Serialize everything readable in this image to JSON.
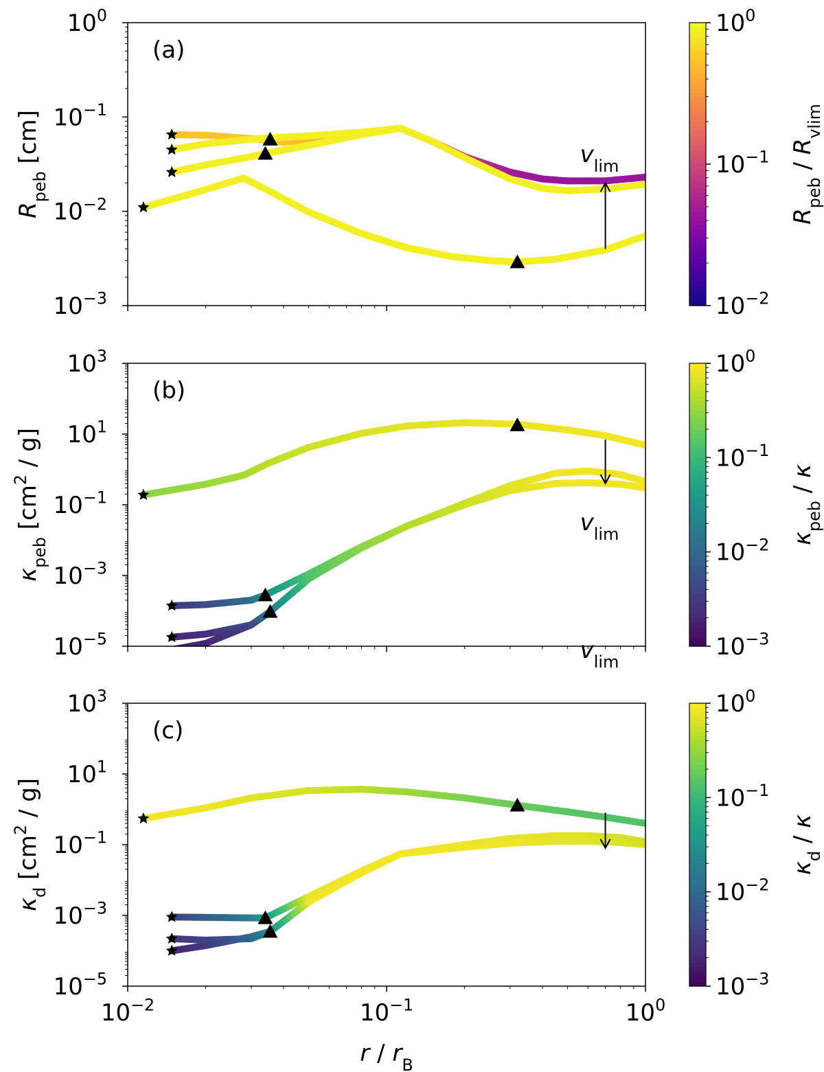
{
  "chart_data": [
    {
      "type": "line",
      "panel_label": "(a)",
      "ylabel": "R_peb [cm]",
      "xscale": "log",
      "yscale": "log",
      "xlim": [
        0.01,
        1.0
      ],
      "ylim": [
        0.001,
        1.0
      ],
      "yticks": [
        0.001,
        0.01,
        0.1,
        1.0
      ],
      "ytick_labels": [
        {
          "base": "10",
          "exp": "−3"
        },
        {
          "base": "10",
          "exp": "−2"
        },
        {
          "base": "10",
          "exp": "−1"
        },
        {
          "base": "10",
          "exp": "0"
        }
      ],
      "colorbar": {
        "label": "R_peb / R_vlim",
        "colormap": "plasma",
        "range": [
          0.01,
          1.0
        ],
        "tick_labels": [
          {
            "base": "10",
            "exp": "0"
          },
          {
            "base": "10",
            "exp": "−1"
          },
          {
            "base": "10",
            "exp": "−2"
          }
        ]
      },
      "annotation": {
        "text": "v",
        "sub": "lim",
        "arrow": "up",
        "arrow_x": 0.7,
        "arrow_from": 0.004,
        "arrow_to": 0.02
      },
      "series": [
        {
          "x": [
            0.0148,
            0.02,
            0.03,
            0.035,
            0.04,
            0.06,
            0.113,
            0.15,
            0.2,
            0.3,
            0.4,
            0.5,
            0.7,
            1.0
          ],
          "y": [
            0.065,
            0.064,
            0.059,
            0.056,
            0.054,
            0.06,
            0.076,
            0.055,
            0.038,
            0.026,
            0.022,
            0.021,
            0.021,
            0.023
          ],
          "c": [
            0.55,
            0.56,
            0.58,
            0.6,
            0.55,
            0.45,
            0.32,
            0.16,
            0.08,
            0.05,
            0.046,
            0.045,
            0.045,
            0.046
          ]
        },
        {
          "x": [
            0.0148,
            0.02,
            0.03,
            0.0355,
            0.05,
            0.08,
            0.113,
            0.15,
            0.2,
            0.3,
            0.4,
            0.5,
            0.7,
            1.0
          ],
          "y": [
            0.045,
            0.052,
            0.058,
            0.06,
            0.063,
            0.069,
            0.076,
            0.055,
            0.037,
            0.022,
            0.0175,
            0.0165,
            0.0172,
            0.0193
          ],
          "c": [
            0.9,
            0.9,
            0.9,
            0.9,
            0.9,
            0.9,
            0.9,
            0.88,
            0.9,
            0.9,
            0.9,
            0.9,
            0.9,
            0.9
          ]
        },
        {
          "x": [
            0.0148,
            0.02,
            0.03,
            0.034,
            0.05,
            0.08,
            0.113
          ],
          "y": [
            0.026,
            0.031,
            0.038,
            0.041,
            0.05,
            0.065,
            0.076
          ],
          "c": [
            0.9,
            0.9,
            0.9,
            0.9,
            0.9,
            0.9,
            0.9
          ]
        },
        {
          "x": [
            0.0115,
            0.02,
            0.028,
            0.035,
            0.05,
            0.08,
            0.12,
            0.18,
            0.25,
            0.32,
            0.45,
            0.7,
            1.0
          ],
          "y": [
            0.011,
            0.017,
            0.0225,
            0.0165,
            0.0098,
            0.0058,
            0.0041,
            0.0033,
            0.003,
            0.0029,
            0.0031,
            0.0039,
            0.0055
          ],
          "c": [
            0.9,
            0.9,
            0.9,
            0.9,
            0.9,
            0.9,
            0.9,
            0.9,
            0.9,
            0.9,
            0.9,
            0.9,
            0.9
          ]
        }
      ],
      "stars": [
        {
          "x": 0.0148,
          "y": 0.065
        },
        {
          "x": 0.0148,
          "y": 0.045
        },
        {
          "x": 0.0148,
          "y": 0.026
        },
        {
          "x": 0.0115,
          "y": 0.011
        }
      ],
      "triangles": [
        {
          "x": 0.0355,
          "y": 0.058
        },
        {
          "x": 0.034,
          "y": 0.041
        },
        {
          "x": 0.32,
          "y": 0.0029
        }
      ]
    },
    {
      "type": "line",
      "panel_label": "(b)",
      "ylabel": "κ_peb [cm² / g]",
      "xscale": "log",
      "yscale": "log",
      "xlim": [
        0.01,
        1.0
      ],
      "ylim": [
        1e-05,
        1000
      ],
      "yticks": [
        1e-05,
        0.001,
        0.1,
        10,
        1000
      ],
      "ytick_labels": [
        {
          "base": "10",
          "exp": "−5"
        },
        {
          "base": "10",
          "exp": "−3"
        },
        {
          "base": "10",
          "exp": "−1"
        },
        {
          "base": "10",
          "exp": "1"
        },
        {
          "base": "10",
          "exp": "3"
        }
      ],
      "colorbar": {
        "label": "κ_peb / κ",
        "colormap": "viridis",
        "range": [
          0.001,
          1.0
        ],
        "tick_labels": [
          {
            "base": "10",
            "exp": "0"
          },
          {
            "base": "10",
            "exp": "−1"
          },
          {
            "base": "10",
            "exp": "−2"
          },
          {
            "base": "10",
            "exp": "−3"
          }
        ]
      },
      "annotation": {
        "text": "v",
        "sub": "lim",
        "arrow": "down",
        "arrow_x": 0.7,
        "arrow_from": 7,
        "arrow_to": 0.4
      },
      "series": [
        {
          "x": [
            0.0115,
            0.02,
            0.028,
            0.035,
            0.05,
            0.08,
            0.12,
            0.2,
            0.32,
            0.5,
            0.7,
            1.0
          ],
          "y": [
            0.19,
            0.38,
            0.68,
            1.5,
            4.2,
            10.5,
            17,
            21,
            19,
            13,
            9,
            4.8
          ],
          "c": [
            0.3,
            0.35,
            0.4,
            0.5,
            0.6,
            0.7,
            0.75,
            0.8,
            0.83,
            0.85,
            0.87,
            0.88
          ]
        },
        {
          "x": [
            0.0148,
            0.02,
            0.03,
            0.034,
            0.05,
            0.08,
            0.12,
            0.2,
            0.3,
            0.45,
            0.6,
            0.8,
            1.0
          ],
          "y": [
            0.00014,
            0.00015,
            0.0002,
            0.00028,
            0.0011,
            0.0065,
            0.025,
            0.11,
            0.35,
            0.78,
            0.9,
            0.72,
            0.45
          ],
          "c": [
            0.003,
            0.005,
            0.012,
            0.03,
            0.15,
            0.3,
            0.45,
            0.6,
            0.75,
            0.85,
            0.88,
            0.88,
            0.88
          ]
        },
        {
          "x": [
            0.0148,
            0.02,
            0.03,
            0.0355,
            0.05,
            0.08,
            0.12,
            0.2,
            0.3,
            0.45,
            0.6,
            0.8,
            1.0
          ],
          "y": [
            1.8e-05,
            2.2e-05,
            4e-05,
            9.5e-05,
            0.0008,
            0.006,
            0.025,
            0.1,
            0.25,
            0.4,
            0.42,
            0.38,
            0.3
          ],
          "c": [
            0.002,
            0.0025,
            0.006,
            0.02,
            0.15,
            0.3,
            0.45,
            0.6,
            0.75,
            0.85,
            0.88,
            0.88,
            0.88
          ]
        },
        {
          "x": [
            0.0148,
            0.02,
            0.03,
            0.0355
          ],
          "y": [
            8e-06,
            1.2e-05,
            4e-05,
            9.5e-05
          ],
          "c": [
            0.002,
            0.002,
            0.004,
            0.02
          ]
        }
      ],
      "stars": [
        {
          "x": 0.0115,
          "y": 0.19
        },
        {
          "x": 0.0148,
          "y": 0.00014
        },
        {
          "x": 0.0148,
          "y": 1.8e-05
        }
      ],
      "triangles": [
        {
          "x": 0.32,
          "y": 18
        },
        {
          "x": 0.034,
          "y": 0.00028
        },
        {
          "x": 0.0355,
          "y": 9.5e-05
        }
      ]
    },
    {
      "type": "line",
      "panel_label": "(c)",
      "ylabel": "κ_d [cm² / g]",
      "xscale": "log",
      "yscale": "log",
      "xlim": [
        0.01,
        1.0
      ],
      "ylim": [
        1e-05,
        1000
      ],
      "yticks": [
        1e-05,
        0.001,
        0.1,
        10,
        1000
      ],
      "ytick_labels": [
        {
          "base": "10",
          "exp": "−5"
        },
        {
          "base": "10",
          "exp": "−3"
        },
        {
          "base": "10",
          "exp": "−1"
        },
        {
          "base": "10",
          "exp": "1"
        },
        {
          "base": "10",
          "exp": "3"
        }
      ],
      "colorbar": {
        "label": "κ_d / κ",
        "colormap": "viridis",
        "range": [
          0.001,
          1.0
        ],
        "tick_labels": [
          {
            "base": "10",
            "exp": "0"
          },
          {
            "base": "10",
            "exp": "−1"
          },
          {
            "base": "10",
            "exp": "−2"
          },
          {
            "base": "10",
            "exp": "−3"
          }
        ]
      },
      "annotation": {
        "text": "v",
        "sub": "lim",
        "arrow": "down",
        "arrow_x": 0.7,
        "arrow_from": 0.8,
        "arrow_to": 0.08
      },
      "series": [
        {
          "x": [
            0.0115,
            0.02,
            0.03,
            0.05,
            0.08,
            0.12,
            0.2,
            0.32,
            0.5,
            0.7,
            1.0
          ],
          "y": [
            0.55,
            1.1,
            2.1,
            3.4,
            3.7,
            3.1,
            2.1,
            1.3,
            0.85,
            0.6,
            0.4
          ],
          "c": [
            0.9,
            0.85,
            0.75,
            0.65,
            0.5,
            0.35,
            0.25,
            0.2,
            0.16,
            0.15,
            0.15
          ]
        },
        {
          "x": [
            0.0148,
            0.02,
            0.03,
            0.034,
            0.05,
            0.08,
            0.113,
            0.2,
            0.3,
            0.45,
            0.6,
            0.8,
            1.0
          ],
          "y": [
            0.0009,
            0.00088,
            0.00085,
            0.00085,
            0.0034,
            0.018,
            0.055,
            0.1,
            0.15,
            0.18,
            0.18,
            0.16,
            0.12
          ],
          "c": [
            0.004,
            0.008,
            0.02,
            0.04,
            0.8,
            0.85,
            0.85,
            0.85,
            0.8,
            0.75,
            0.7,
            0.65,
            0.6
          ]
        },
        {
          "x": [
            0.0148,
            0.02,
            0.03,
            0.0355,
            0.05,
            0.08,
            0.113,
            0.2,
            0.3,
            0.45,
            0.6,
            0.8,
            1.0
          ],
          "y": [
            0.00022,
            0.0002,
            0.00022,
            0.00035,
            0.0024,
            0.016,
            0.055,
            0.085,
            0.11,
            0.125,
            0.125,
            0.115,
            0.1
          ],
          "c": [
            0.003,
            0.004,
            0.01,
            0.03,
            0.85,
            0.9,
            0.9,
            0.88,
            0.85,
            0.8,
            0.75,
            0.7,
            0.65
          ]
        },
        {
          "x": [
            0.0148,
            0.02,
            0.03,
            0.0355
          ],
          "y": [
            0.0001,
            0.00014,
            0.00025,
            0.00035
          ],
          "c": [
            0.002,
            0.003,
            0.01,
            0.03
          ]
        }
      ],
      "stars": [
        {
          "x": 0.0115,
          "y": 0.55
        },
        {
          "x": 0.0148,
          "y": 0.0009
        },
        {
          "x": 0.0148,
          "y": 0.00022
        },
        {
          "x": 0.0148,
          "y": 0.0001
        }
      ],
      "triangles": [
        {
          "x": 0.32,
          "y": 1.3
        },
        {
          "x": 0.034,
          "y": 0.00085
        },
        {
          "x": 0.0355,
          "y": 0.00035
        }
      ]
    }
  ],
  "x_axis": {
    "label": "r / r_B",
    "tick_labels": [
      {
        "base": "10",
        "exp": "−2"
      },
      {
        "base": "10",
        "exp": "−1"
      },
      {
        "base": "10",
        "exp": "0"
      }
    ]
  }
}
